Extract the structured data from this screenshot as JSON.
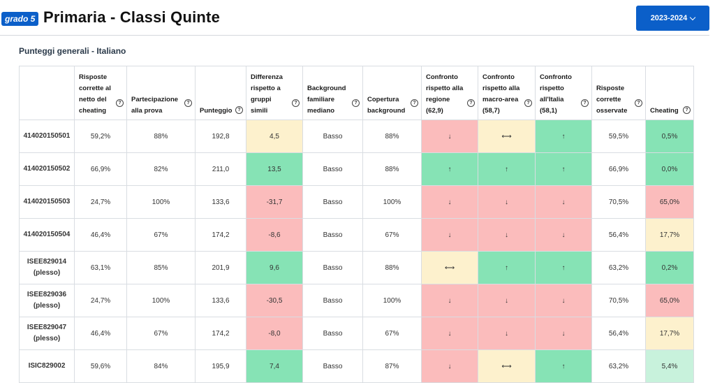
{
  "header": {
    "badge": "grado 5",
    "title": "Primaria - Classi Quinte",
    "year": "2023-2024"
  },
  "section": {
    "title": "Punteggi generali - Italiano"
  },
  "columns": [
    "",
    "Risposte corrette al netto del cheating",
    "Partecipazione alla prova",
    "Punteggio",
    "Differenza rispetto a gruppi simili",
    "Background familiare mediano",
    "Copertura background",
    "Confronto rispetto alla regione (62,9)",
    "Confronto rispetto alla macro-area (58,7)",
    "Confronto rispetto all'Italia (58,1)",
    "Risposte corrette osservate",
    "Cheating"
  ],
  "colors": {
    "green": "#86e3b5",
    "light_green": "#c8f2dc",
    "red": "#fbbcbc",
    "yellow": "#fdf1cd",
    "accent": "#0b5fc9"
  },
  "rows": [
    {
      "school": "414020150501",
      "cells": [
        "59,2%",
        "88%",
        "192,8",
        "4,5",
        "Basso",
        "88%",
        "↓",
        "⟷",
        "↑",
        "59,5%",
        "0,5%"
      ]
    },
    {
      "school": "414020150502",
      "cells": [
        "66,9%",
        "82%",
        "211,0",
        "13,5",
        "Basso",
        "88%",
        "↑",
        "↑",
        "↑",
        "66,9%",
        "0,0%"
      ]
    },
    {
      "school": "414020150503",
      "cells": [
        "24,7%",
        "100%",
        "133,6",
        "-31,7",
        "Basso",
        "100%",
        "↓",
        "↓",
        "↓",
        "70,5%",
        "65,0%"
      ]
    },
    {
      "school": "414020150504",
      "cells": [
        "46,4%",
        "67%",
        "174,2",
        "-8,6",
        "Basso",
        "67%",
        "↓",
        "↓",
        "↓",
        "56,4%",
        "17,7%"
      ]
    },
    {
      "school": "ISEE829014 (plesso)",
      "cells": [
        "63,1%",
        "85%",
        "201,9",
        "9,6",
        "Basso",
        "88%",
        "⟷",
        "↑",
        "↑",
        "63,2%",
        "0,2%"
      ]
    },
    {
      "school": "ISEE829036 (plesso)",
      "cells": [
        "24,7%",
        "100%",
        "133,6",
        "-30,5",
        "Basso",
        "100%",
        "↓",
        "↓",
        "↓",
        "70,5%",
        "65,0%"
      ]
    },
    {
      "school": "ISEE829047 (plesso)",
      "cells": [
        "46,4%",
        "67%",
        "174,2",
        "-8,0",
        "Basso",
        "67%",
        "↓",
        "↓",
        "↓",
        "56,4%",
        "17,7%"
      ]
    },
    {
      "school": "ISIC829002",
      "cells": [
        "59,6%",
        "84%",
        "195,9",
        "7,4",
        "Basso",
        "87%",
        "↓",
        "⟷",
        "↑",
        "63,2%",
        "5,4%"
      ]
    }
  ]
}
